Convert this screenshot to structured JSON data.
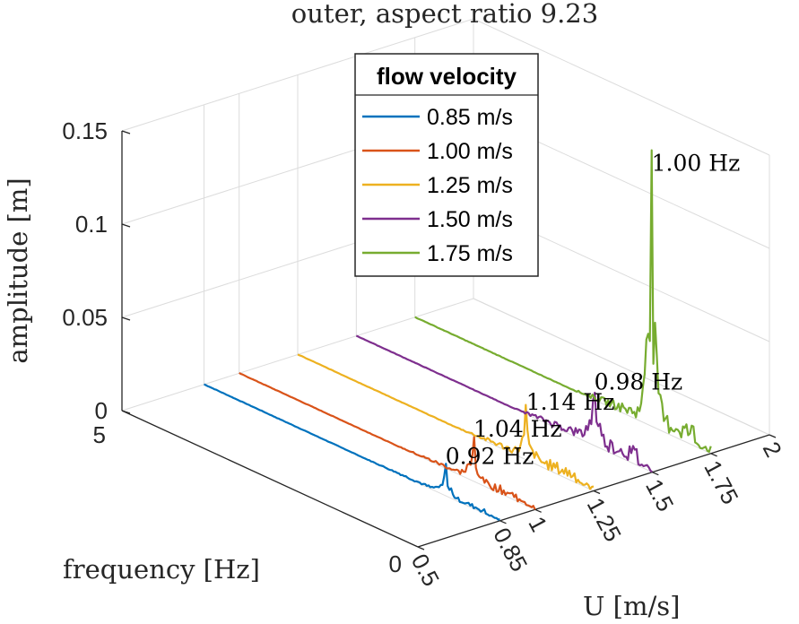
{
  "chart_data": {
    "type": "line",
    "title": "outer, aspect ratio 9.23",
    "xlabel": "U [m/s]",
    "ylabel": "frequency [Hz]",
    "zlabel": "amplitude [m]",
    "xlim": [
      0.5,
      2
    ],
    "ylim": [
      0,
      5
    ],
    "zlim": [
      0,
      0.15
    ],
    "x_ticks": [
      "0.5",
      "0.85",
      "1",
      "1.25",
      "1.5",
      "1.75",
      "2"
    ],
    "x_tick_values": [
      0.5,
      0.85,
      1.0,
      1.25,
      1.5,
      1.75,
      2.0
    ],
    "y_ticks": [
      "0",
      "5"
    ],
    "y_tick_values": [
      0,
      5
    ],
    "z_ticks": [
      "0",
      "0.05",
      "0.1",
      "0.15"
    ],
    "z_tick_values": [
      0,
      0.05,
      0.1,
      0.15
    ],
    "grid": true,
    "legend": {
      "title": "flow velocity",
      "placement": "top-center"
    },
    "series": [
      {
        "name": "0.85 m/s",
        "u": 0.85,
        "color": "#0072BD",
        "peak_frequency": 0.92,
        "peak_amplitude": 0.014,
        "peak_label": "0.92 Hz"
      },
      {
        "name": "1.00 m/s",
        "u": 1.0,
        "color": "#D95319",
        "peak_frequency": 1.04,
        "peak_amplitude": 0.021,
        "peak_label": "1.04 Hz"
      },
      {
        "name": "1.25 m/s",
        "u": 1.25,
        "color": "#EDB120",
        "peak_frequency": 1.14,
        "peak_amplitude": 0.024,
        "peak_label": "1.14 Hz"
      },
      {
        "name": "1.50 m/s",
        "u": 1.5,
        "color": "#7E2F8E",
        "peak_frequency": 0.98,
        "peak_amplitude": 0.027,
        "peak_label": "0.98 Hz"
      },
      {
        "name": "1.75 m/s",
        "u": 1.75,
        "color": "#77AC30",
        "peak_frequency": 1.0,
        "peak_amplitude": 0.134,
        "peak_label": "1.00 Hz"
      }
    ]
  }
}
